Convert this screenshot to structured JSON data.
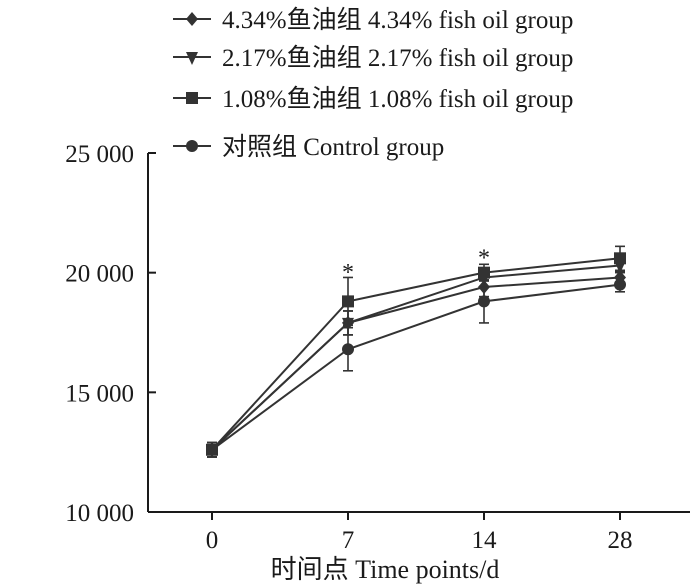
{
  "chart_data": {
    "type": "line",
    "title": "",
    "xlabel": "时间点 Time points/d",
    "ylabel": "",
    "x": [
      0,
      7,
      14,
      28
    ],
    "x_tick_labels": [
      "0",
      "7",
      "14",
      "28"
    ],
    "ylim": [
      10000,
      25000
    ],
    "y_ticks": [
      10000,
      15000,
      20000,
      25000
    ],
    "y_tick_labels": [
      "10 000",
      "15 000",
      "20 000",
      "25 000"
    ],
    "grid": false,
    "legend_position": "top",
    "line_color": "#333333",
    "series": [
      {
        "name": "4.34%鱼油组 4.34% fish oil group",
        "marker": "diamond",
        "values": [
          12600,
          17900,
          19400,
          19800
        ],
        "errors": [
          300,
          500,
          400,
          250
        ]
      },
      {
        "name": "2.17%鱼油组 2.17% fish oil group",
        "marker": "triangle-down",
        "values": [
          12600,
          17900,
          19800,
          20300
        ],
        "errors": [
          300,
          500,
          400,
          300
        ]
      },
      {
        "name": "1.08%鱼油组 1.08% fish oil group",
        "marker": "square",
        "values": [
          12600,
          18800,
          20000,
          20600
        ],
        "errors": [
          300,
          1000,
          350,
          500
        ]
      },
      {
        "name": "对照组 Control group",
        "marker": "circle",
        "values": [
          12600,
          16800,
          18800,
          19500
        ],
        "errors": [
          300,
          900,
          900,
          300
        ]
      }
    ],
    "annotations": [
      {
        "text": "*",
        "x": 7,
        "y": 20200
      },
      {
        "text": "*",
        "x": 14,
        "y": 20800
      }
    ]
  }
}
